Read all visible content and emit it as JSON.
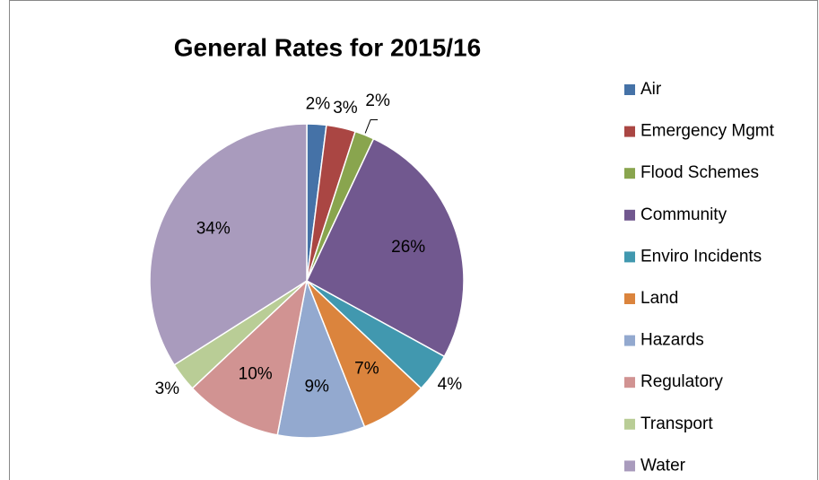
{
  "chart_data": {
    "type": "pie",
    "title": "General Rates for 2015/16",
    "categories": [
      "Air",
      "Emergency Mgmt",
      "Flood Schemes",
      "Community",
      "Enviro Incidents",
      "Land",
      "Hazards",
      "Regulatory",
      "Transport",
      "Water"
    ],
    "values": [
      2,
      3,
      2,
      26,
      4,
      7,
      9,
      10,
      3,
      34
    ],
    "value_labels": [
      "2%",
      "3%",
      "2%",
      "26%",
      "4%",
      "7%",
      "9%",
      "10%",
      "3%",
      "34%"
    ],
    "colors": [
      "#4572a7",
      "#aa4643",
      "#89a54e",
      "#71588f",
      "#4198af",
      "#db843d",
      "#93a9cf",
      "#d19392",
      "#b9cd96",
      "#a99bbd"
    ],
    "legend": "right"
  }
}
